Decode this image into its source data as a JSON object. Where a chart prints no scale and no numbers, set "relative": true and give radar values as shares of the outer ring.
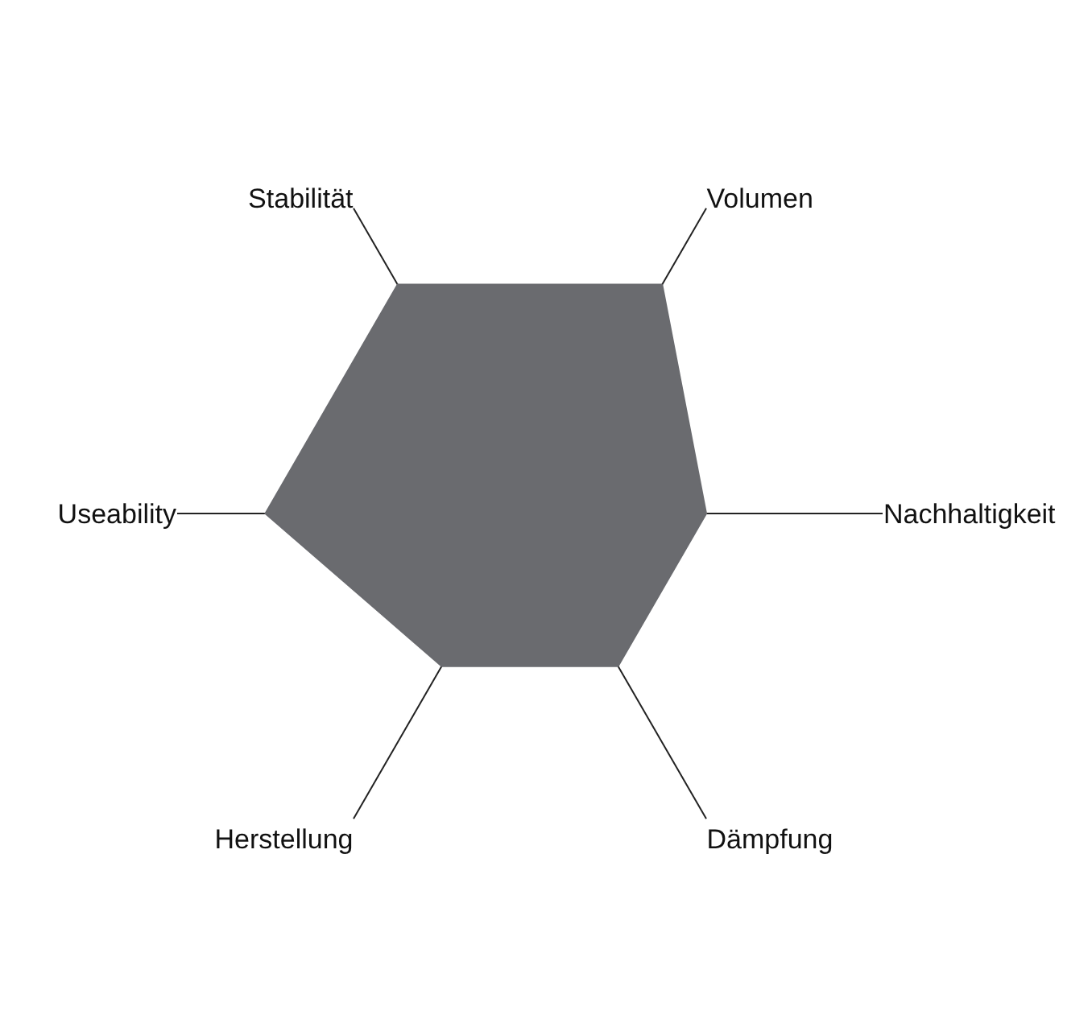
{
  "chart_data": {
    "type": "radar",
    "relative": true,
    "categories": [
      "Volumen",
      "Nachhaltigkeit",
      "Dämpfung",
      "Herstellung",
      "Useability",
      "Stabilität"
    ],
    "series": [
      {
        "color": "#6a6b6f",
        "values": [
          0.75,
          0.5,
          0.5,
          0.5,
          0.75,
          0.75
        ]
      }
    ]
  }
}
